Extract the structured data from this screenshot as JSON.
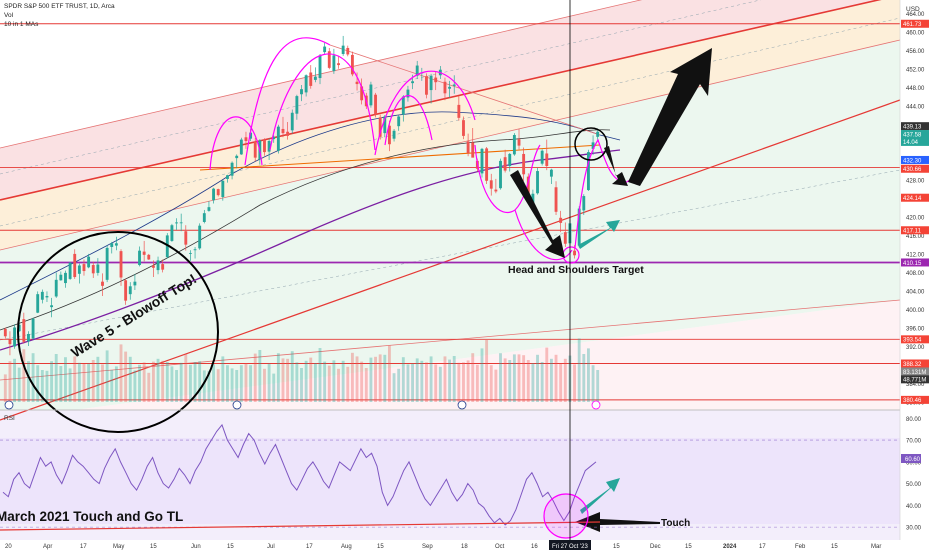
{
  "header": {
    "symbol_line": "SPDR S&P 500 ETF TRUST, 1D, Arca",
    "vol_label": "Vol",
    "ma_label": "10 in 1 MAs"
  },
  "currency_label": "USD",
  "rsi_label": "RSI",
  "annotations": {
    "target": "Head and Shoulders Target",
    "wave": "Wave 5 - Blowoff Top!",
    "touch_tl": "March 2021 Touch and Go TL",
    "touch": "Touch",
    "cursor_date": "Fri 27 Oct '23"
  },
  "colors": {
    "accent_magenta": "#ff00ff",
    "accent_teal": "#26a69a",
    "level_red": "#f44336",
    "support_purple": "#9c27b0",
    "candle_up": "#26a69a",
    "candle_down": "#ef5350"
  },
  "chart_data": {
    "type": "candlestick",
    "price_axis": {
      "range": [
        380,
        466
      ],
      "ticks": [
        464,
        460,
        456,
        452,
        448,
        444,
        440,
        436,
        432,
        428,
        424,
        420,
        416,
        412,
        408,
        404,
        400,
        396,
        392,
        388,
        384,
        380
      ]
    },
    "price_badges": [
      {
        "value": "461.73",
        "color": "#f44336"
      },
      {
        "value": "439.13",
        "color": "#333333"
      },
      {
        "value": "437.58",
        "color": "#26a69a"
      },
      {
        "value": "14.04",
        "color": "#26a69a"
      },
      {
        "value": "432.30",
        "color": "#2962ff"
      },
      {
        "value": "430.66",
        "color": "#f44336"
      },
      {
        "value": "424.14",
        "color": "#f44336"
      },
      {
        "value": "417.11",
        "color": "#f44336"
      },
      {
        "value": "410.15",
        "color": "#9c27b0"
      },
      {
        "value": "393.54",
        "color": "#f44336"
      },
      {
        "value": "388.32",
        "color": "#f44336"
      },
      {
        "value": "83.131M",
        "color": "#888888"
      },
      {
        "value": "48.771M",
        "color": "#333333"
      },
      {
        "value": "380.46",
        "color": "#f44336"
      }
    ],
    "horizontal_levels": [
      461.73,
      430.66,
      417.11,
      410.15,
      393.54,
      388.32,
      380.46
    ],
    "x_axis": {
      "ticks": [
        "20",
        "Apr",
        "17",
        "May",
        "15",
        "Jun",
        "15",
        "Jul",
        "17",
        "Aug",
        "15",
        "Sep",
        "18",
        "Oct",
        "16",
        "Fri 27 Oct '23",
        "15",
        "Dec",
        "15",
        "2024",
        "17",
        "Feb",
        "15",
        "Mar"
      ]
    },
    "rsi": {
      "range": [
        25,
        82
      ],
      "ticks": [
        80,
        70,
        60,
        50,
        40,
        30
      ],
      "band": [
        30,
        70
      ],
      "current_value": "60.60",
      "values": [
        46,
        44,
        52,
        55,
        50,
        48,
        55,
        62,
        58,
        60,
        54,
        50,
        56,
        63,
        60,
        58,
        55,
        52,
        50,
        57,
        62,
        66,
        60,
        55,
        50,
        47,
        52,
        58,
        62,
        55,
        50,
        48,
        52,
        57,
        54,
        50,
        56,
        60,
        66,
        70,
        74,
        77,
        70,
        66,
        62,
        68,
        73,
        70,
        64,
        59,
        64,
        68,
        62,
        56,
        50,
        47,
        52,
        57,
        60,
        56,
        51,
        48,
        54,
        60,
        58,
        56,
        61,
        66,
        62,
        64,
        58,
        46,
        40,
        44,
        50,
        56,
        60,
        54,
        48,
        43,
        40,
        44,
        48,
        52,
        46,
        42,
        45,
        50,
        47,
        41,
        39,
        35,
        32,
        34,
        31,
        33,
        38,
        45,
        52,
        55,
        50,
        44,
        46,
        42,
        37,
        33,
        37,
        44,
        50,
        56,
        58,
        60
      ]
    },
    "candles": [
      [
        395.8,
        396.1,
        393.7,
        394.2
      ],
      [
        393.5,
        395.3,
        390.1,
        392.5
      ],
      [
        392.0,
        396.8,
        391.5,
        396.1
      ],
      [
        395.3,
        397.7,
        395.1,
        396.7
      ],
      [
        397.9,
        399.3,
        392.6,
        393.0
      ],
      [
        393.1,
        395.3,
        392.1,
        394.7
      ],
      [
        393.7,
        398.2,
        393.5,
        398.0
      ],
      [
        399.3,
        403.9,
        399.2,
        403.3
      ],
      [
        402.1,
        404.3,
        401.3,
        403.8
      ],
      [
        402.6,
        403.9,
        401.6,
        402.9
      ],
      [
        400.5,
        402.5,
        398.3,
        400.9
      ],
      [
        402.8,
        408.0,
        402.5,
        406.4
      ],
      [
        406.3,
        408.2,
        406.2,
        407.5
      ],
      [
        405.7,
        408.4,
        404.7,
        407.9
      ],
      [
        406.6,
        410.3,
        406.4,
        410.1
      ],
      [
        412.0,
        413.0,
        406.6,
        407.0
      ],
      [
        407.7,
        409.9,
        405.6,
        409.5
      ],
      [
        409.8,
        410.8,
        407.3,
        408.3
      ],
      [
        409.1,
        412.0,
        408.9,
        411.4
      ],
      [
        409.6,
        410.3,
        406.8,
        407.8
      ],
      [
        407.9,
        411.1,
        407.3,
        409.7
      ],
      [
        406.0,
        407.8,
        402.9,
        405.1
      ],
      [
        406.4,
        413.8,
        405.9,
        413.3
      ],
      [
        413.5,
        414.6,
        412.1,
        414.3
      ],
      [
        413.8,
        415.7,
        412.8,
        414.3
      ],
      [
        412.6,
        413.0,
        405.1,
        406.9
      ],
      [
        406.3,
        406.6,
        401.0,
        401.9
      ],
      [
        403.3,
        405.9,
        402.1,
        405.0
      ],
      [
        405.2,
        407.6,
        404.2,
        406.0
      ],
      [
        409.6,
        413.6,
        409.3,
        412.7
      ],
      [
        412.5,
        414.8,
        410.4,
        411.8
      ],
      [
        411.8,
        412.0,
        410.7,
        410.8
      ],
      [
        409.5,
        410.6,
        407.0,
        409.0
      ],
      [
        408.5,
        411.4,
        407.6,
        410.6
      ],
      [
        409.8,
        410.8,
        408.0,
        408.6
      ],
      [
        411.3,
        416.5,
        411.0,
        416.0
      ],
      [
        414.8,
        418.5,
        414.6,
        418.2
      ],
      [
        418.6,
        419.7,
        417.2,
        418.8
      ],
      [
        418.8,
        420.7,
        416.9,
        418.8
      ],
      [
        416.9,
        418.2,
        412.7,
        414.0
      ],
      [
        412.2,
        412.8,
        410.5,
        412.2
      ],
      [
        412.8,
        413.5,
        411.0,
        413.0
      ],
      [
        413.2,
        418.6,
        412.9,
        418.1
      ],
      [
        418.9,
        421.5,
        418.6,
        420.8
      ],
      [
        421.3,
        423.4,
        421.1,
        422.1
      ],
      [
        423.6,
        426.3,
        422.9,
        426.1
      ],
      [
        426.0,
        426.1,
        424.4,
        424.7
      ],
      [
        424.3,
        427.9,
        423.5,
        427.8
      ],
      [
        428.2,
        429.1,
        427.4,
        429.0
      ],
      [
        428.9,
        432.0,
        428.1,
        431.7
      ],
      [
        432.7,
        433.5,
        430.5,
        433.2
      ],
      [
        433.5,
        437.1,
        433.4,
        436.7
      ],
      [
        437.2,
        438.4,
        434.7,
        436.4
      ],
      [
        436.9,
        439.1,
        436.4,
        438.2
      ],
      [
        436.3,
        437.1,
        432.0,
        432.8
      ],
      [
        432.4,
        436.8,
        431.3,
        436.5
      ],
      [
        436.7,
        437.0,
        433.2,
        434.0
      ],
      [
        434.1,
        436.9,
        432.3,
        436.4
      ],
      [
        436.8,
        437.6,
        436.0,
        437.3
      ],
      [
        434.3,
        439.9,
        433.7,
        439.5
      ],
      [
        439.0,
        441.6,
        437.2,
        438.1
      ],
      [
        438.4,
        440.5,
        436.7,
        437.5
      ],
      [
        438.7,
        443.2,
        438.0,
        442.5
      ],
      [
        442.3,
        446.4,
        441.0,
        446.1
      ],
      [
        446.5,
        448.5,
        445.0,
        447.6
      ],
      [
        446.9,
        450.8,
        446.0,
        450.6
      ],
      [
        451.2,
        452.8,
        447.7,
        448.3
      ],
      [
        449.6,
        452.3,
        449.1,
        450.3
      ],
      [
        450.0,
        455.2,
        448.7,
        454.9
      ],
      [
        455.6,
        457.7,
        455.1,
        456.8
      ],
      [
        455.8,
        456.5,
        451.9,
        452.2
      ],
      [
        451.5,
        456.3,
        450.9,
        454.9
      ],
      [
        453.2,
        454.8,
        452.0,
        452.8
      ],
      [
        455.2,
        459.1,
        454.8,
        457.0
      ],
      [
        456.5,
        457.0,
        454.7,
        455.1
      ],
      [
        455.0,
        455.7,
        450.4,
        450.8
      ],
      [
        449.2,
        451.2,
        447.3,
        448.7
      ],
      [
        448.2,
        449.9,
        444.3,
        445.2
      ],
      [
        446.2,
        446.8,
        443.3,
        443.9
      ],
      [
        444.1,
        449.2,
        443.6,
        448.6
      ],
      [
        446.4,
        446.8,
        441.5,
        442.1
      ],
      [
        441.5,
        442.1,
        436.7,
        437.3
      ],
      [
        438.1,
        442.0,
        437.2,
        441.7
      ],
      [
        439.7,
        440.8,
        434.2,
        435.7
      ],
      [
        436.9,
        439.0,
        436.3,
        438.6
      ],
      [
        439.6,
        441.9,
        438.6,
        441.7
      ],
      [
        442.1,
        446.3,
        440.6,
        446.0
      ],
      [
        445.8,
        448.3,
        444.9,
        447.5
      ],
      [
        448.9,
        450.7,
        447.6,
        449.3
      ],
      [
        450.5,
        453.7,
        449.8,
        452.7
      ],
      [
        451.2,
        452.2,
        449.4,
        451.2
      ],
      [
        450.4,
        451.0,
        445.6,
        446.4
      ],
      [
        447.4,
        450.9,
        444.5,
        450.5
      ],
      [
        450.1,
        451.3,
        447.4,
        449.1
      ],
      [
        450.6,
        452.6,
        449.8,
        451.8
      ],
      [
        449.2,
        450.1,
        445.2,
        446.7
      ],
      [
        447.7,
        449.4,
        445.8,
        448.1
      ],
      [
        448.3,
        450.6,
        446.6,
        448.6
      ],
      [
        444.2,
        446.1,
        440.8,
        441.4
      ],
      [
        440.9,
        441.7,
        436.8,
        437.5
      ],
      [
        436.3,
        438.0,
        433.1,
        433.8
      ],
      [
        436.1,
        439.2,
        433.0,
        432.8
      ],
      [
        432.1,
        432.6,
        429.8,
        430.4
      ],
      [
        429.4,
        434.9,
        428.5,
        434.7
      ],
      [
        434.8,
        435.1,
        427.1,
        427.8
      ],
      [
        427.9,
        429.3,
        424.6,
        426.1
      ],
      [
        425.9,
        428.2,
        425.1,
        425.5
      ],
      [
        426.2,
        432.6,
        425.9,
        432.1
      ],
      [
        432.9,
        434.5,
        429.6,
        430.0
      ],
      [
        431.0,
        433.8,
        429.8,
        433.6
      ],
      [
        433.5,
        438.1,
        433.2,
        437.7
      ],
      [
        436.8,
        439.0,
        434.6,
        435.4
      ],
      [
        433.6,
        435.0,
        427.8,
        429.2
      ],
      [
        428.7,
        429.4,
        423.9,
        424.6
      ],
      [
        422.2,
        425.9,
        421.7,
        425.0
      ],
      [
        425.1,
        430.6,
        424.8,
        429.9
      ],
      [
        431.5,
        434.6,
        431.1,
        434.3
      ],
      [
        433.7,
        436.7,
        430.1,
        431.0
      ],
      [
        428.7,
        430.4,
        427.1,
        430.2
      ],
      [
        426.4,
        427.7,
        420.4,
        421.1
      ],
      [
        419.8,
        421.3,
        416.7,
        418.7
      ],
      [
        416.7,
        418.8,
        413.5,
        414.2
      ],
      [
        414.3,
        419.4,
        413.8,
        418.6
      ],
      [
        412.7,
        413.9,
        411.0,
        411.7
      ],
      [
        413.8,
        422.3,
        413.4,
        421.8
      ],
      [
        421.4,
        424.9,
        420.4,
        424.5
      ],
      [
        425.8,
        434.5,
        425.6,
        434.0
      ],
      [
        434.7,
        437.6,
        433.4,
        436.1
      ],
      [
        437.3,
        439.1,
        436.6,
        438.4
      ]
    ]
  }
}
